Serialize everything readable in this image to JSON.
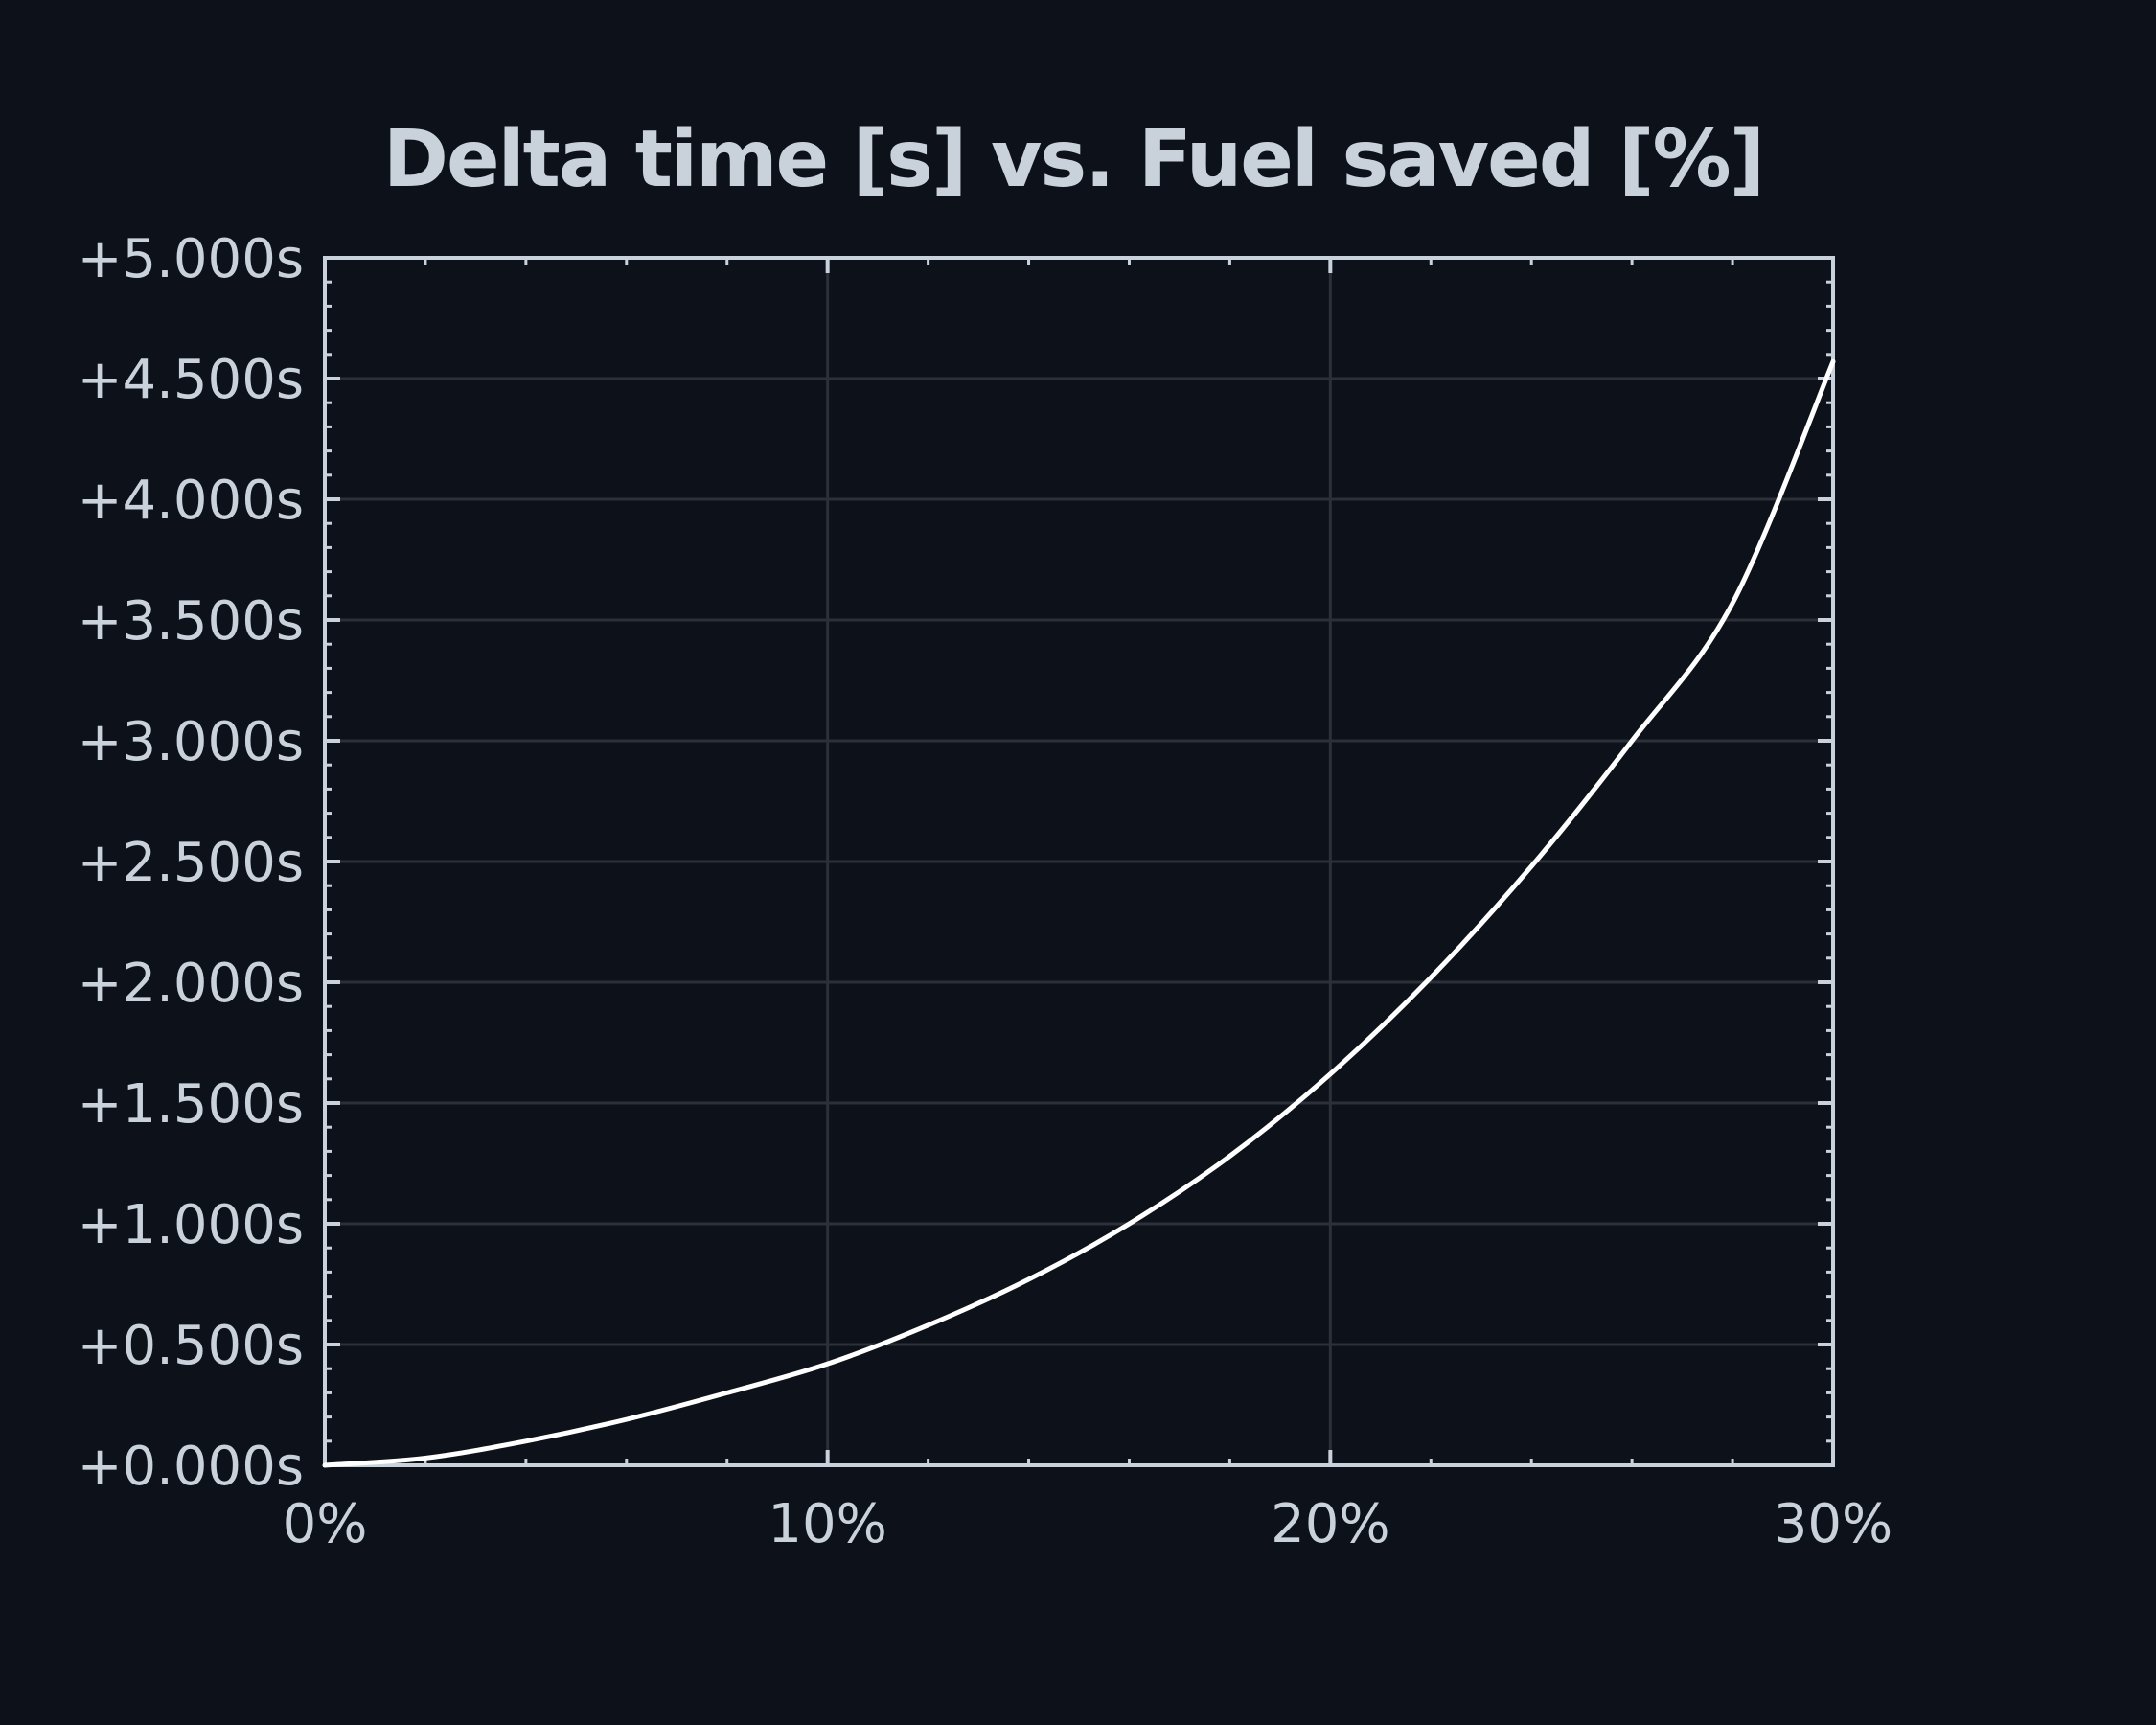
{
  "colors": {
    "background": "#0d1119",
    "text": "#c9d1db",
    "axis": "#c9d1db",
    "grid": "#2c3038",
    "line": "#ffffff"
  },
  "chart_data": {
    "type": "line",
    "title": "Delta time [s] vs. Fuel saved [%]",
    "xlabel": "",
    "ylabel": "",
    "xlim": [
      0,
      30
    ],
    "ylim": [
      0,
      5
    ],
    "grid": true,
    "x_ticks": [
      0,
      10,
      20,
      30
    ],
    "x_tick_labels": [
      "0%",
      "10%",
      "20%",
      "30%"
    ],
    "y_ticks": [
      0,
      0.5,
      1,
      1.5,
      2,
      2.5,
      3,
      3.5,
      4,
      4.5,
      5
    ],
    "y_tick_labels": [
      "+0.000s",
      "+0.500s",
      "+1.000s",
      "+1.500s",
      "+2.000s",
      "+2.500s",
      "+3.000s",
      "+3.500s",
      "+4.000s",
      "+4.500s",
      "+5.000s"
    ],
    "series": [
      {
        "x": [
          0,
          2,
          4,
          6,
          8,
          10,
          12,
          14,
          16,
          18,
          20,
          22,
          24,
          26,
          28,
          30
        ],
        "y": [
          0,
          0.03,
          0.1,
          0.19,
          0.3,
          0.42,
          0.58,
          0.77,
          1.0,
          1.28,
          1.62,
          2.02,
          2.48,
          3.0,
          3.57,
          4.57
        ]
      }
    ]
  }
}
